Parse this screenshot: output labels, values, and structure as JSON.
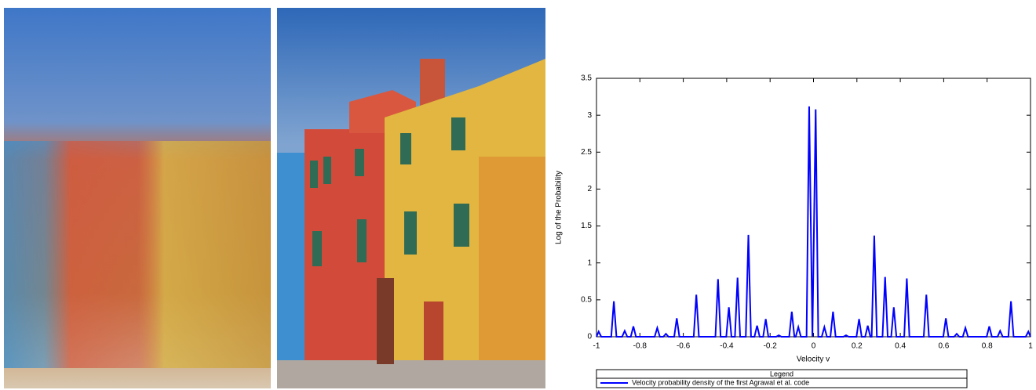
{
  "chart_data": {
    "type": "line",
    "xlabel": "Velocity v",
    "ylabel": "Log of the Probability",
    "legend_title": "Legend",
    "legend": "lower-left-outside",
    "x": [
      -1,
      -0.99,
      -0.978,
      -0.932,
      -0.92,
      -0.908,
      -0.882,
      -0.87,
      -0.858,
      -0.842,
      -0.83,
      -0.818,
      -0.732,
      -0.72,
      -0.708,
      -0.692,
      -0.68,
      -0.668,
      -0.642,
      -0.63,
      -0.618,
      -0.552,
      -0.54,
      -0.528,
      -0.452,
      -0.44,
      -0.428,
      -0.402,
      -0.39,
      -0.378,
      -0.362,
      -0.35,
      -0.338,
      -0.312,
      -0.3,
      -0.288,
      -0.272,
      -0.26,
      -0.248,
      -0.232,
      -0.22,
      -0.208,
      -0.172,
      -0.16,
      -0.148,
      -0.112,
      -0.1,
      -0.088,
      -0.082,
      -0.07,
      -0.058,
      -0.032,
      -0.02,
      -0.005,
      0.01,
      0.022,
      0.038,
      0.05,
      0.062,
      0.078,
      0.09,
      0.102,
      0.138,
      0.15,
      0.162,
      0.198,
      0.21,
      0.222,
      0.238,
      0.25,
      0.262,
      0.268,
      0.28,
      0.292,
      0.318,
      0.33,
      0.342,
      0.358,
      0.37,
      0.382,
      0.418,
      0.43,
      0.442,
      0.508,
      0.52,
      0.532,
      0.598,
      0.61,
      0.622,
      0.648,
      0.66,
      0.672,
      0.688,
      0.7,
      0.712,
      0.798,
      0.81,
      0.822,
      0.848,
      0.86,
      0.872,
      0.898,
      0.91,
      0.922,
      0.978,
      0.99,
      1
    ],
    "series": [
      {
        "name": "Velocity probability density of the first Agrawal et al. code",
        "color": "#0000ff",
        "values": [
          0,
          0.07,
          0,
          0,
          0.48,
          0,
          0,
          0.08,
          0,
          0,
          0.14,
          0,
          0,
          0.12,
          0,
          0,
          0.04,
          0,
          0,
          0.25,
          0,
          0,
          0.57,
          0,
          0,
          0.78,
          0,
          0,
          0.4,
          0,
          0,
          0.8,
          0,
          0,
          1.38,
          0,
          0,
          0.15,
          0,
          0,
          0.24,
          0,
          0,
          0.02,
          0,
          0,
          0.34,
          0,
          0,
          0.13,
          0,
          0,
          3.12,
          0,
          3.08,
          0,
          0,
          0.13,
          0,
          0,
          0.34,
          0,
          0,
          0.02,
          0,
          0,
          0.24,
          0,
          0,
          0.15,
          0,
          0,
          1.37,
          0,
          0,
          0.81,
          0,
          0,
          0.4,
          0,
          0,
          0.79,
          0,
          0,
          0.57,
          0,
          0,
          0.25,
          0,
          0,
          0.04,
          0,
          0,
          0.12,
          0,
          0,
          0.14,
          0,
          0,
          0.08,
          0,
          0,
          0.48,
          0,
          0,
          0.07,
          0
        ]
      }
    ],
    "xlim": [
      -1,
      1
    ],
    "xticks": [
      -1,
      -0.8,
      -0.6,
      -0.4,
      -0.2,
      0,
      0.2,
      0.4,
      0.6,
      0.8,
      1
    ],
    "ylim": [
      0,
      3.5
    ],
    "yticks": [
      0,
      0.5,
      1,
      1.5,
      2,
      2.5,
      3,
      3.5
    ],
    "grid": false
  }
}
